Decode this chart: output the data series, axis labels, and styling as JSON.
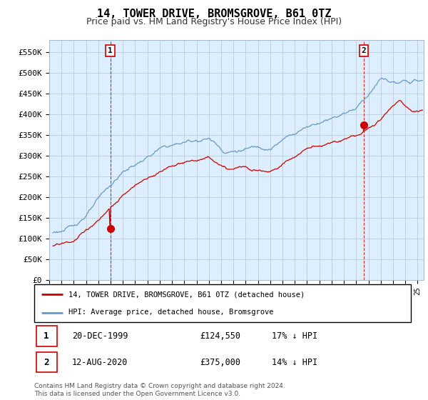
{
  "title": "14, TOWER DRIVE, BROMSGROVE, B61 0TZ",
  "subtitle": "Price paid vs. HM Land Registry's House Price Index (HPI)",
  "title_fontsize": 11,
  "subtitle_fontsize": 9,
  "ylabel_ticks": [
    "£0",
    "£50K",
    "£100K",
    "£150K",
    "£200K",
    "£250K",
    "£300K",
    "£350K",
    "£400K",
    "£450K",
    "£500K",
    "£550K"
  ],
  "ytick_values": [
    0,
    50000,
    100000,
    150000,
    200000,
    250000,
    300000,
    350000,
    400000,
    450000,
    500000,
    550000
  ],
  "ylim": [
    0,
    580000
  ],
  "xlim_start": 1995.3,
  "xlim_end": 2025.5,
  "xtick_years": [
    1995,
    1996,
    1997,
    1998,
    1999,
    2000,
    2001,
    2002,
    2003,
    2004,
    2005,
    2006,
    2007,
    2008,
    2009,
    2010,
    2011,
    2012,
    2013,
    2014,
    2015,
    2016,
    2017,
    2018,
    2019,
    2020,
    2021,
    2022,
    2023,
    2024,
    2025
  ],
  "red_line_color": "#cc0000",
  "blue_line_color": "#6699cc",
  "bg_fill_color": "#ddeeff",
  "background_color": "#ffffff",
  "grid_color": "#bbccdd",
  "sale1_x": 1999.97,
  "sale1_y": 124550,
  "sale2_x": 2020.62,
  "sale2_y": 375000,
  "legend_line1": "14, TOWER DRIVE, BROMSGROVE, B61 0TZ (detached house)",
  "legend_line2": "HPI: Average price, detached house, Bromsgrove",
  "table_row1": [
    "1",
    "20-DEC-1999",
    "£124,550",
    "17% ↓ HPI"
  ],
  "table_row2": [
    "2",
    "12-AUG-2020",
    "£375,000",
    "14% ↓ HPI"
  ],
  "footnote": "Contains HM Land Registry data © Crown copyright and database right 2024.\nThis data is licensed under the Open Government Licence v3.0."
}
